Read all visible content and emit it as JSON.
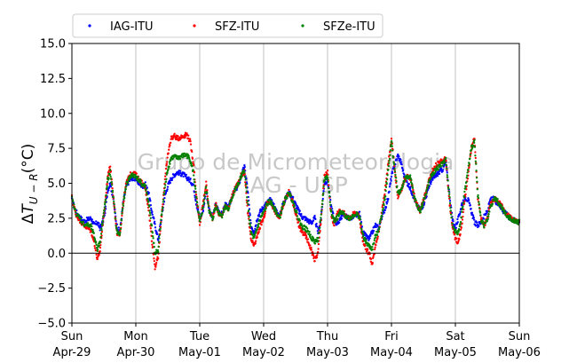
{
  "chart_data": {
    "type": "scatter",
    "ylabel": "ΔT_{U-R}(°C)",
    "ylim": [
      -5.0,
      15.0
    ],
    "yticks": [
      -5.0,
      -2.5,
      0.0,
      2.5,
      5.0,
      7.5,
      10.0,
      12.5,
      15.0
    ],
    "ytick_labels": [
      "−5.0",
      "−2.5",
      "0.0",
      "2.5",
      "5.0",
      "7.5",
      "10.0",
      "12.5",
      "15.0"
    ],
    "xlim": [
      0,
      7
    ],
    "xtick_labels": [
      {
        "day": "Sun",
        "date": "Apr-29"
      },
      {
        "day": "Mon",
        "date": "Apr-30"
      },
      {
        "day": "Tue",
        "date": "May-01"
      },
      {
        "day": "Wed",
        "date": "May-02"
      },
      {
        "day": "Thu",
        "date": "May-03"
      },
      {
        "day": "Fri",
        "date": "May-04"
      },
      {
        "day": "Sat",
        "date": "May-05"
      },
      {
        "day": "Sun",
        "date": "May-06"
      }
    ],
    "grid": "vertical",
    "legend_position": "top-left",
    "watermark": [
      "Grupo de Micrometeorologia",
      "IAG - USP"
    ],
    "reference_line_y": 0.0,
    "series": [
      {
        "name": "IAG-ITU",
        "color": "#0000ff",
        "x": [
          0,
          0.06,
          0.12,
          0.18,
          0.25,
          0.3,
          0.35,
          0.4,
          0.44,
          0.48,
          0.52,
          0.56,
          0.6,
          0.65,
          0.7,
          0.75,
          0.8,
          0.85,
          0.9,
          0.95,
          1.0,
          1.05,
          1.1,
          1.15,
          1.2,
          1.25,
          1.3,
          1.35,
          1.4,
          1.45,
          1.5,
          1.55,
          1.6,
          1.65,
          1.7,
          1.75,
          1.8,
          1.85,
          1.9,
          1.95,
          2.0,
          2.05,
          2.1,
          2.15,
          2.2,
          2.25,
          2.3,
          2.35,
          2.4,
          2.45,
          2.5,
          2.55,
          2.6,
          2.65,
          2.7,
          2.75,
          2.8,
          2.85,
          2.9,
          2.95,
          3.0,
          3.05,
          3.1,
          3.15,
          3.2,
          3.25,
          3.3,
          3.35,
          3.4,
          3.45,
          3.5,
          3.55,
          3.6,
          3.65,
          3.7,
          3.75,
          3.8,
          3.85,
          3.9,
          3.95,
          4.0,
          4.05,
          4.1,
          4.15,
          4.2,
          4.25,
          4.3,
          4.35,
          4.4,
          4.45,
          4.5,
          4.55,
          4.6,
          4.65,
          4.7,
          4.75,
          4.8,
          4.85,
          4.9,
          4.95,
          5.0,
          5.05,
          5.1,
          5.15,
          5.2,
          5.25,
          5.3,
          5.35,
          5.4,
          5.45,
          5.5,
          5.55,
          5.6,
          5.65,
          5.7,
          5.75,
          5.8,
          5.85,
          5.9,
          5.95,
          6.0,
          6.05,
          6.1,
          6.15,
          6.2,
          6.25,
          6.3,
          6.35,
          6.4,
          6.45,
          6.5,
          6.55,
          6.6,
          6.65,
          6.7,
          6.75,
          6.8,
          6.85,
          6.9,
          6.95,
          7.0
        ],
        "y": [
          3.8,
          3.0,
          2.6,
          2.3,
          2.4,
          2.5,
          2.0,
          2.2,
          1.8,
          2.2,
          3.0,
          4.5,
          5.0,
          3.8,
          2.0,
          1.5,
          3.5,
          4.8,
          5.2,
          5.4,
          5.3,
          5.0,
          4.8,
          4.9,
          4.3,
          3.0,
          2.0,
          1.0,
          2.5,
          4.0,
          4.8,
          5.3,
          5.6,
          5.8,
          5.7,
          5.6,
          5.4,
          5.2,
          4.9,
          3.5,
          2.5,
          3.0,
          4.5,
          3.0,
          2.5,
          3.5,
          3.0,
          2.8,
          3.5,
          3.2,
          4.0,
          4.5,
          4.8,
          5.5,
          6.2,
          4.5,
          2.0,
          1.5,
          2.5,
          3.0,
          3.3,
          3.6,
          3.8,
          3.5,
          3.0,
          2.6,
          3.5,
          4.0,
          4.3,
          4.0,
          3.5,
          3.0,
          2.6,
          2.5,
          2.3,
          2.2,
          2.5,
          1.5,
          2.5,
          5.0,
          5.2,
          3.5,
          2.5,
          2.0,
          2.5,
          2.8,
          2.6,
          2.5,
          2.6,
          2.7,
          2.8,
          1.5,
          1.2,
          1.0,
          1.5,
          2.0,
          1.8,
          2.6,
          3.2,
          4.0,
          5.5,
          6.3,
          7.0,
          6.5,
          5.5,
          5.0,
          4.6,
          4.0,
          3.4,
          3.1,
          3.5,
          4.2,
          5.0,
          5.3,
          5.6,
          5.8,
          6.0,
          6.5,
          4.5,
          2.5,
          1.8,
          2.5,
          3.5,
          4.0,
          3.8,
          3.0,
          2.2,
          2.0,
          2.2,
          2.6,
          3.0,
          3.8,
          3.9,
          3.6,
          3.4,
          3.0,
          2.8,
          2.5,
          2.4,
          2.3,
          2.2
        ]
      },
      {
        "name": "SFZ-ITU",
        "color": "#ff0000",
        "x": [
          0,
          0.06,
          0.12,
          0.18,
          0.25,
          0.3,
          0.35,
          0.4,
          0.44,
          0.48,
          0.52,
          0.56,
          0.6,
          0.65,
          0.7,
          0.75,
          0.8,
          0.85,
          0.9,
          0.95,
          1.0,
          1.05,
          1.1,
          1.15,
          1.2,
          1.25,
          1.3,
          1.35,
          1.4,
          1.45,
          1.5,
          1.55,
          1.6,
          1.65,
          1.7,
          1.75,
          1.8,
          1.85,
          1.9,
          1.95,
          2.0,
          2.05,
          2.1,
          2.15,
          2.2,
          2.25,
          2.3,
          2.35,
          2.4,
          2.45,
          2.5,
          2.55,
          2.6,
          2.65,
          2.7,
          2.75,
          2.8,
          2.85,
          2.9,
          2.95,
          3.0,
          3.05,
          3.1,
          3.15,
          3.2,
          3.25,
          3.3,
          3.35,
          3.4,
          3.45,
          3.5,
          3.55,
          3.6,
          3.65,
          3.7,
          3.75,
          3.8,
          3.85,
          3.9,
          3.95,
          4.0,
          4.05,
          4.1,
          4.15,
          4.2,
          4.25,
          4.3,
          4.35,
          4.4,
          4.45,
          4.5,
          4.55,
          4.6,
          4.65,
          4.7,
          4.75,
          4.8,
          4.85,
          4.9,
          4.95,
          5.0,
          5.05,
          5.1,
          5.15,
          5.2,
          5.25,
          5.3,
          5.35,
          5.4,
          5.45,
          5.5,
          5.55,
          5.6,
          5.65,
          5.7,
          5.75,
          5.8,
          5.85,
          5.9,
          5.95,
          6.0,
          6.05,
          6.1,
          6.15,
          6.2,
          6.25,
          6.3,
          6.35,
          6.4,
          6.45,
          6.5,
          6.55,
          6.6,
          6.65,
          6.7,
          6.75,
          6.8,
          6.85,
          6.9,
          6.95,
          7.0
        ],
        "y": [
          4.0,
          2.8,
          2.4,
          2.0,
          1.8,
          1.6,
          0.8,
          -0.5,
          0.2,
          2.0,
          3.5,
          5.5,
          6.2,
          4.0,
          1.5,
          1.2,
          3.5,
          5.0,
          5.5,
          5.8,
          5.6,
          5.3,
          5.0,
          4.6,
          3.2,
          1.0,
          -1.0,
          -0.3,
          2.5,
          5.0,
          7.0,
          8.2,
          8.4,
          8.2,
          8.3,
          8.4,
          8.5,
          8.0,
          6.5,
          4.0,
          2.0,
          3.5,
          5.0,
          3.0,
          2.5,
          3.5,
          2.8,
          2.7,
          3.5,
          3.1,
          4.0,
          4.6,
          5.0,
          5.6,
          5.8,
          3.0,
          1.0,
          0.5,
          1.2,
          2.0,
          2.5,
          3.5,
          3.7,
          3.3,
          2.8,
          2.5,
          3.4,
          4.0,
          4.4,
          3.7,
          2.8,
          2.0,
          1.5,
          1.3,
          0.8,
          0.2,
          -0.5,
          0.0,
          2.5,
          5.5,
          5.8,
          3.0,
          2.0,
          2.8,
          3.0,
          2.9,
          2.6,
          2.5,
          2.8,
          2.9,
          2.5,
          1.0,
          0.3,
          0.0,
          -0.8,
          0.5,
          1.5,
          3.0,
          4.5,
          6.5,
          8.2,
          6.0,
          4.0,
          4.5,
          5.2,
          5.5,
          5.3,
          4.2,
          3.5,
          3.0,
          3.8,
          4.5,
          5.5,
          6.0,
          6.3,
          6.5,
          6.6,
          6.8,
          4.0,
          2.0,
          1.0,
          0.8,
          2.0,
          4.0,
          5.5,
          7.5,
          8.2,
          4.0,
          2.5,
          2.0,
          2.5,
          3.5,
          3.9,
          3.8,
          3.5,
          3.2,
          2.8,
          2.6,
          2.4,
          2.3,
          2.2
        ]
      },
      {
        "name": "SFZe-ITU",
        "color": "#008000",
        "x": [
          0,
          0.06,
          0.12,
          0.18,
          0.25,
          0.3,
          0.35,
          0.4,
          0.44,
          0.48,
          0.52,
          0.56,
          0.6,
          0.65,
          0.7,
          0.75,
          0.8,
          0.85,
          0.9,
          0.95,
          1.0,
          1.05,
          1.1,
          1.15,
          1.2,
          1.25,
          1.3,
          1.35,
          1.4,
          1.45,
          1.5,
          1.55,
          1.6,
          1.65,
          1.7,
          1.75,
          1.8,
          1.85,
          1.9,
          1.95,
          2.0,
          2.05,
          2.1,
          2.15,
          2.2,
          2.25,
          2.3,
          2.35,
          2.4,
          2.45,
          2.5,
          2.55,
          2.6,
          2.65,
          2.7,
          2.75,
          2.8,
          2.85,
          2.9,
          2.95,
          3.0,
          3.05,
          3.1,
          3.15,
          3.2,
          3.25,
          3.3,
          3.35,
          3.4,
          3.45,
          3.5,
          3.55,
          3.6,
          3.65,
          3.7,
          3.75,
          3.8,
          3.85,
          3.9,
          3.95,
          4.0,
          4.05,
          4.1,
          4.15,
          4.2,
          4.25,
          4.3,
          4.35,
          4.4,
          4.45,
          4.5,
          4.55,
          4.6,
          4.65,
          4.7,
          4.75,
          4.8,
          4.85,
          4.9,
          4.95,
          5.0,
          5.05,
          5.1,
          5.15,
          5.2,
          5.25,
          5.3,
          5.35,
          5.4,
          5.45,
          5.5,
          5.55,
          5.6,
          5.65,
          5.7,
          5.75,
          5.8,
          5.85,
          5.9,
          5.95,
          6.0,
          6.05,
          6.1,
          6.15,
          6.2,
          6.25,
          6.3,
          6.35,
          6.4,
          6.45,
          6.5,
          6.55,
          6.6,
          6.65,
          6.7,
          6.75,
          6.8,
          6.85,
          6.9,
          6.95,
          7.0
        ],
        "y": [
          3.9,
          2.9,
          2.5,
          2.1,
          2.0,
          1.9,
          1.2,
          0.3,
          0.8,
          2.3,
          3.5,
          5.2,
          5.8,
          3.9,
          1.6,
          1.3,
          3.4,
          4.9,
          5.4,
          5.6,
          5.5,
          5.2,
          4.9,
          4.8,
          3.6,
          1.8,
          0.0,
          0.2,
          2.6,
          4.5,
          6.0,
          6.8,
          6.9,
          6.8,
          6.9,
          7.0,
          7.0,
          6.7,
          5.8,
          3.8,
          2.2,
          3.2,
          4.7,
          3.0,
          2.4,
          3.4,
          2.9,
          2.7,
          3.4,
          3.1,
          3.9,
          4.5,
          4.9,
          5.5,
          5.9,
          3.6,
          1.5,
          1.0,
          1.8,
          2.5,
          2.9,
          3.5,
          3.7,
          3.4,
          2.9,
          2.5,
          3.4,
          4.0,
          4.3,
          3.8,
          3.1,
          2.4,
          1.9,
          1.8,
          1.5,
          1.1,
          0.8,
          1.0,
          2.6,
          5.3,
          5.5,
          3.2,
          2.3,
          2.5,
          2.9,
          2.8,
          2.6,
          2.5,
          2.7,
          2.8,
          2.6,
          1.3,
          0.8,
          0.5,
          0.3,
          1.2,
          1.7,
          2.8,
          4.0,
          6.0,
          8.0,
          6.0,
          4.3,
          4.5,
          5.2,
          5.5,
          5.4,
          4.1,
          3.4,
          3.0,
          3.7,
          4.4,
          5.3,
          5.7,
          6.0,
          6.2,
          6.4,
          6.7,
          4.3,
          2.2,
          1.5,
          1.5,
          2.8,
          4.5,
          6.0,
          7.5,
          8.0,
          4.2,
          2.4,
          2.0,
          2.4,
          3.3,
          3.9,
          3.8,
          3.4,
          3.1,
          2.7,
          2.5,
          2.4,
          2.3,
          2.2
        ]
      }
    ]
  }
}
